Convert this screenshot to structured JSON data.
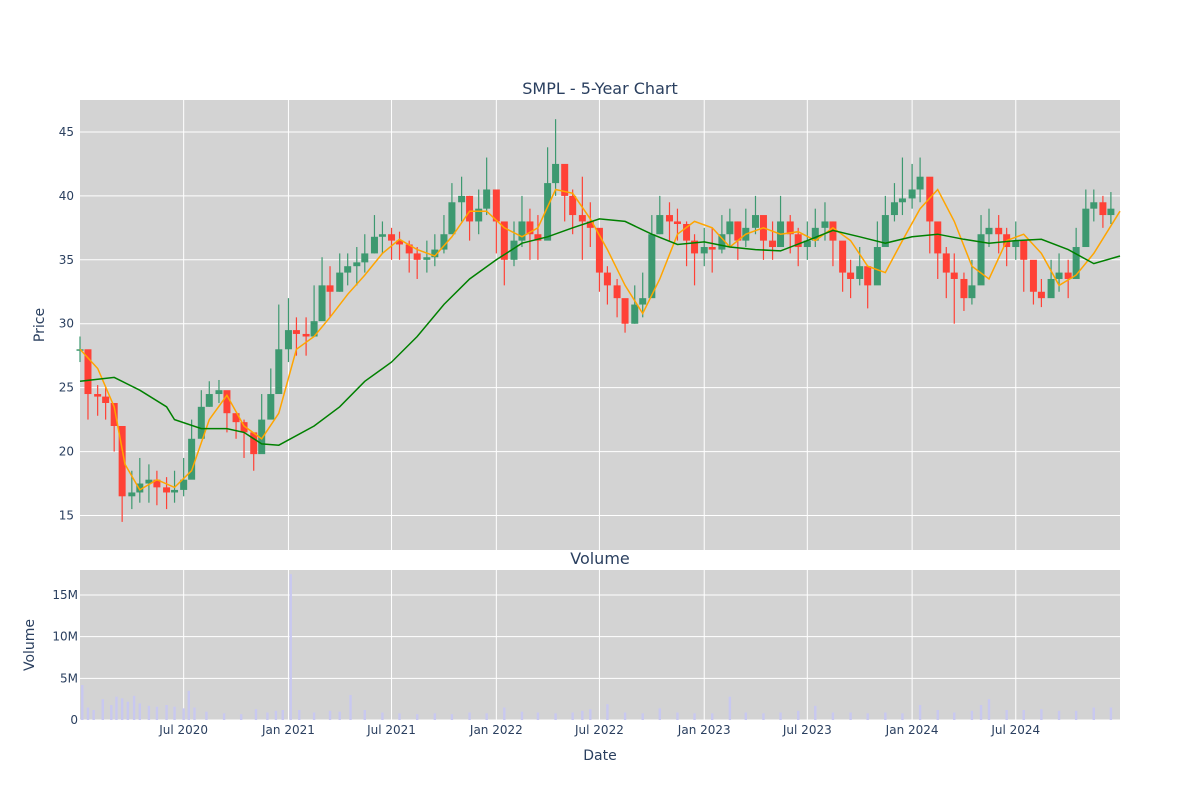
{
  "chart_data": [
    {
      "type": "candlestick",
      "title": "SMPL - 5-Year Chart",
      "ylabel": "Price",
      "xlabel": "",
      "xlim": [
        "2020-01-01",
        "2024-12-31"
      ],
      "ylim": [
        12.3,
        47.5
      ],
      "yticks": [
        15,
        20,
        25,
        30,
        35,
        40,
        45
      ],
      "grid": true,
      "colors": {
        "up": "#3d9970",
        "down": "#ff4136",
        "ma_short": "#ffa500",
        "ma_long": "#008000",
        "background": "#d3d3d3"
      },
      "series": [
        {
          "kind": "candles",
          "x": [
            "2020-01-01",
            "2020-01-15",
            "2020-02-01",
            "2020-02-15",
            "2020-03-01",
            "2020-03-15",
            "2020-04-01",
            "2020-04-15",
            "2020-05-01",
            "2020-05-15",
            "2020-06-01",
            "2020-06-15",
            "2020-07-01",
            "2020-07-15",
            "2020-08-01",
            "2020-08-15",
            "2020-09-01",
            "2020-09-15",
            "2020-10-01",
            "2020-10-15",
            "2020-11-01",
            "2020-11-15",
            "2020-12-01",
            "2020-12-15",
            "2021-01-01",
            "2021-01-15",
            "2021-02-01",
            "2021-02-15",
            "2021-03-01",
            "2021-03-15",
            "2021-04-01",
            "2021-04-15",
            "2021-05-01",
            "2021-05-15",
            "2021-06-01",
            "2021-06-15",
            "2021-07-01",
            "2021-07-15",
            "2021-08-01",
            "2021-08-15",
            "2021-09-01",
            "2021-09-15",
            "2021-10-01",
            "2021-10-15",
            "2021-11-01",
            "2021-11-15",
            "2021-12-01",
            "2021-12-15",
            "2022-01-01",
            "2022-01-15",
            "2022-02-01",
            "2022-02-15",
            "2022-03-01",
            "2022-03-15",
            "2022-04-01",
            "2022-04-15",
            "2022-05-01",
            "2022-05-15",
            "2022-06-01",
            "2022-06-15",
            "2022-07-01",
            "2022-07-15",
            "2022-08-01",
            "2022-08-15",
            "2022-09-01",
            "2022-09-15",
            "2022-10-01",
            "2022-10-15",
            "2022-11-01",
            "2022-11-15",
            "2022-12-01",
            "2022-12-15",
            "2023-01-01",
            "2023-01-15",
            "2023-02-01",
            "2023-02-15",
            "2023-03-01",
            "2023-03-15",
            "2023-04-01",
            "2023-04-15",
            "2023-05-01",
            "2023-05-15",
            "2023-06-01",
            "2023-06-15",
            "2023-07-01",
            "2023-07-15",
            "2023-08-01",
            "2023-08-15",
            "2023-09-01",
            "2023-09-15",
            "2023-10-01",
            "2023-10-15",
            "2023-11-01",
            "2023-11-15",
            "2023-12-01",
            "2023-12-15",
            "2024-01-01",
            "2024-01-15",
            "2024-02-01",
            "2024-02-15",
            "2024-03-01",
            "2024-03-15",
            "2024-04-01",
            "2024-04-15",
            "2024-05-01",
            "2024-05-15",
            "2024-06-01",
            "2024-06-15",
            "2024-07-01",
            "2024-07-15",
            "2024-08-01",
            "2024-08-15",
            "2024-09-01",
            "2024-09-15",
            "2024-10-01",
            "2024-10-15",
            "2024-11-01",
            "2024-11-15",
            "2024-12-01",
            "2024-12-15"
          ],
          "close": [
            28.0,
            24.5,
            24.3,
            23.8,
            22.0,
            16.5,
            16.8,
            17.5,
            17.8,
            17.2,
            16.8,
            17.0,
            17.8,
            21.0,
            23.5,
            24.5,
            24.8,
            23.0,
            22.3,
            21.5,
            19.8,
            22.5,
            24.5,
            28.0,
            29.5,
            29.2,
            29.0,
            30.2,
            33.0,
            32.5,
            34.0,
            34.5,
            34.8,
            35.5,
            36.8,
            37.0,
            36.5,
            36.2,
            35.5,
            35.0,
            35.2,
            35.8,
            37.0,
            39.5,
            40.0,
            38.0,
            39.0,
            40.5,
            38.0,
            35.0,
            36.5,
            38.0,
            37.0,
            36.5,
            41.0,
            42.5,
            40.0,
            38.5,
            38.0,
            37.5,
            34.0,
            33.0,
            32.0,
            30.0,
            31.5,
            32.0,
            37.0,
            38.5,
            38.0,
            37.8,
            36.5,
            35.5,
            36.0,
            35.8,
            37.0,
            38.0,
            36.5,
            37.5,
            38.5,
            36.5,
            36.0,
            38.0,
            37.0,
            36.0,
            36.5,
            37.5,
            38.0,
            36.5,
            34.0,
            33.5,
            34.5,
            33.0,
            36.0,
            38.5,
            39.5,
            39.8,
            40.5,
            41.5,
            38.0,
            35.5,
            34.0,
            33.5,
            32.0,
            33.0,
            37.0,
            37.5,
            37.0,
            36.0,
            36.5,
            35.0,
            32.5,
            32.0,
            33.5,
            34.0,
            33.5,
            36.0,
            39.0,
            39.5,
            38.5,
            39.0
          ],
          "high": [
            29.0,
            25.5,
            25.2,
            25.0,
            23.0,
            18.0,
            18.5,
            19.5,
            19.0,
            18.5,
            18.0,
            18.5,
            19.5,
            22.5,
            24.8,
            25.5,
            25.6,
            24.0,
            23.0,
            22.5,
            21.0,
            24.5,
            26.5,
            31.5,
            32.0,
            30.5,
            30.5,
            33.0,
            35.2,
            34.5,
            35.5,
            35.5,
            36.0,
            37.0,
            38.5,
            38.0,
            37.5,
            37.2,
            36.5,
            36.0,
            36.5,
            37.0,
            38.5,
            41.0,
            41.5,
            40.0,
            40.5,
            43.0,
            40.5,
            37.0,
            38.0,
            40.0,
            39.0,
            38.5,
            43.8,
            46.0,
            42.0,
            40.5,
            41.5,
            39.5,
            36.0,
            34.5,
            33.5,
            31.5,
            33.0,
            34.0,
            38.5,
            40.0,
            39.5,
            39.0,
            38.0,
            37.0,
            37.5,
            37.5,
            38.5,
            39.0,
            38.0,
            39.0,
            40.0,
            38.0,
            38.0,
            40.0,
            38.5,
            37.5,
            38.0,
            39.0,
            39.5,
            38.0,
            35.5,
            35.0,
            36.0,
            34.5,
            38.0,
            40.0,
            41.0,
            43.0,
            42.5,
            43.0,
            40.0,
            37.0,
            36.0,
            35.5,
            34.0,
            35.0,
            38.5,
            39.0,
            38.5,
            37.5,
            38.0,
            36.5,
            34.0,
            33.5,
            35.0,
            35.5,
            35.0,
            37.5,
            40.5,
            40.5,
            40.0,
            40.3
          ],
          "low": [
            27.0,
            22.5,
            22.8,
            22.5,
            20.0,
            14.5,
            15.5,
            16.0,
            16.0,
            15.8,
            15.5,
            16.0,
            16.5,
            19.5,
            22.0,
            23.5,
            23.8,
            21.5,
            21.0,
            19.5,
            18.5,
            21.0,
            23.0,
            26.5,
            27.0,
            27.5,
            27.5,
            29.0,
            31.0,
            30.5,
            32.5,
            33.0,
            33.0,
            34.0,
            35.5,
            35.5,
            35.0,
            35.0,
            34.0,
            33.5,
            34.0,
            34.5,
            35.5,
            38.0,
            38.0,
            36.5,
            37.0,
            38.5,
            35.5,
            33.0,
            34.5,
            36.0,
            35.0,
            35.0,
            39.0,
            40.0,
            38.0,
            37.0,
            35.0,
            36.0,
            32.5,
            31.5,
            30.5,
            29.3,
            30.0,
            30.5,
            35.0,
            37.0,
            36.5,
            36.5,
            34.5,
            33.0,
            34.5,
            34.0,
            35.5,
            36.0,
            35.0,
            36.0,
            37.0,
            35.0,
            35.0,
            36.5,
            35.5,
            34.5,
            35.0,
            36.0,
            36.5,
            34.5,
            32.5,
            32.0,
            33.0,
            31.2,
            34.5,
            37.0,
            38.0,
            38.5,
            39.0,
            39.5,
            35.5,
            33.5,
            32.0,
            30.0,
            31.0,
            31.5,
            35.5,
            36.0,
            35.5,
            34.5,
            35.0,
            32.5,
            31.5,
            31.3,
            32.5,
            32.5,
            32.0,
            34.5,
            37.5,
            38.0,
            37.5,
            37.8
          ]
        },
        {
          "kind": "line",
          "color": "#ffa500",
          "x": [
            "2020-01-01",
            "2020-02-01",
            "2020-03-01",
            "2020-03-20",
            "2020-04-15",
            "2020-05-15",
            "2020-06-15",
            "2020-07-15",
            "2020-08-15",
            "2020-09-15",
            "2020-10-15",
            "2020-11-15",
            "2020-12-15",
            "2021-01-15",
            "2021-02-15",
            "2021-03-15",
            "2021-04-15",
            "2021-05-15",
            "2021-06-15",
            "2021-07-15",
            "2021-08-15",
            "2021-09-15",
            "2021-10-15",
            "2021-11-15",
            "2021-12-15",
            "2022-01-15",
            "2022-02-15",
            "2022-03-15",
            "2022-04-15",
            "2022-05-15",
            "2022-06-15",
            "2022-07-15",
            "2022-08-15",
            "2022-09-15",
            "2022-10-15",
            "2022-11-15",
            "2022-12-15",
            "2023-01-15",
            "2023-02-15",
            "2023-03-15",
            "2023-04-15",
            "2023-05-15",
            "2023-06-15",
            "2023-07-15",
            "2023-08-15",
            "2023-09-15",
            "2023-10-15",
            "2023-11-15",
            "2023-12-15",
            "2024-01-15",
            "2024-02-15",
            "2024-03-15",
            "2024-04-15",
            "2024-05-15",
            "2024-06-15",
            "2024-07-15",
            "2024-08-15",
            "2024-09-15",
            "2024-10-15",
            "2024-11-15",
            "2024-12-31"
          ],
          "values": [
            28.0,
            26.5,
            23.5,
            19.0,
            17.0,
            17.8,
            17.2,
            18.5,
            22.5,
            24.4,
            22.0,
            21.0,
            23.0,
            28.0,
            29.0,
            30.5,
            32.3,
            33.8,
            35.5,
            36.6,
            35.8,
            35.3,
            36.8,
            38.8,
            38.8,
            37.5,
            36.8,
            37.5,
            40.5,
            40.2,
            38.2,
            35.8,
            33.0,
            30.8,
            33.5,
            37.0,
            38.0,
            37.5,
            36.0,
            37.0,
            37.5,
            37.0,
            37.2,
            36.5,
            37.5,
            36.5,
            34.5,
            34.0,
            36.5,
            39.0,
            40.5,
            38.0,
            34.5,
            33.5,
            36.5,
            37.0,
            35.5,
            33.0,
            33.8,
            35.5,
            38.8
          ]
        },
        {
          "kind": "line",
          "color": "#008000",
          "x": [
            "2020-01-01",
            "2020-03-01",
            "2020-04-15",
            "2020-06-01",
            "2020-06-15",
            "2020-08-01",
            "2020-09-15",
            "2020-10-15",
            "2020-11-15",
            "2020-12-15",
            "2021-02-15",
            "2021-04-01",
            "2021-05-15",
            "2021-07-01",
            "2021-08-15",
            "2021-10-01",
            "2021-11-15",
            "2022-01-01",
            "2022-02-15",
            "2022-04-01",
            "2022-05-15",
            "2022-07-01",
            "2022-08-15",
            "2022-10-01",
            "2022-11-15",
            "2023-01-01",
            "2023-02-15",
            "2023-04-01",
            "2023-05-15",
            "2023-07-01",
            "2023-08-15",
            "2023-10-01",
            "2023-11-15",
            "2024-01-01",
            "2024-02-15",
            "2024-04-01",
            "2024-05-15",
            "2024-07-01",
            "2024-08-15",
            "2024-10-01",
            "2024-11-15",
            "2024-12-31"
          ],
          "values": [
            25.5,
            25.8,
            24.8,
            23.5,
            22.5,
            21.8,
            21.8,
            21.5,
            20.6,
            20.5,
            22.0,
            23.5,
            25.5,
            27.0,
            29.0,
            31.5,
            33.5,
            35.0,
            36.3,
            36.8,
            37.5,
            38.2,
            38.0,
            37.0,
            36.2,
            36.4,
            36.0,
            35.8,
            35.7,
            36.5,
            37.3,
            36.8,
            36.3,
            36.8,
            37.0,
            36.6,
            36.3,
            36.5,
            36.6,
            35.8,
            34.7,
            35.3
          ]
        }
      ]
    },
    {
      "type": "bar",
      "title": "Volume",
      "ylabel": "Volume",
      "xlabel": "Date",
      "ylim": [
        0,
        18000000
      ],
      "yticks": [
        0,
        5000000,
        10000000,
        15000000
      ],
      "ytick_labels": [
        "0",
        "5M",
        "10M",
        "15M"
      ],
      "xtick_labels": [
        "Jul 2020",
        "Jan 2021",
        "Jul 2021",
        "Jan 2022",
        "Jul 2022",
        "Jan 2023",
        "Jul 2023",
        "Jan 2024",
        "Jul 2024"
      ],
      "xticks": [
        "2020-07-01",
        "2021-01-01",
        "2021-07-01",
        "2022-01-01",
        "2022-07-01",
        "2023-01-01",
        "2023-07-01",
        "2024-01-01",
        "2024-07-01"
      ],
      "color": "#c8c8f0",
      "x": [
        "2020-01-05",
        "2020-01-15",
        "2020-01-25",
        "2020-02-10",
        "2020-02-25",
        "2020-03-05",
        "2020-03-15",
        "2020-03-25",
        "2020-04-05",
        "2020-04-15",
        "2020-05-01",
        "2020-05-15",
        "2020-06-01",
        "2020-06-15",
        "2020-07-01",
        "2020-07-10",
        "2020-07-20",
        "2020-08-10",
        "2020-09-10",
        "2020-10-10",
        "2020-11-05",
        "2020-11-25",
        "2020-12-10",
        "2020-12-22",
        "2021-01-05",
        "2021-01-20",
        "2021-02-15",
        "2021-03-15",
        "2021-04-01",
        "2021-04-20",
        "2021-05-15",
        "2021-06-15",
        "2021-07-15",
        "2021-08-15",
        "2021-09-15",
        "2021-10-15",
        "2021-11-15",
        "2021-12-15",
        "2022-01-15",
        "2022-02-15",
        "2022-03-15",
        "2022-04-15",
        "2022-05-15",
        "2022-06-01",
        "2022-06-15",
        "2022-07-15",
        "2022-08-15",
        "2022-09-15",
        "2022-10-15",
        "2022-11-15",
        "2022-12-15",
        "2023-01-15",
        "2023-02-15",
        "2023-03-15",
        "2023-04-15",
        "2023-05-15",
        "2023-06-15",
        "2023-07-15",
        "2023-08-15",
        "2023-09-15",
        "2023-10-15",
        "2023-11-15",
        "2023-12-15",
        "2024-01-15",
        "2024-02-15",
        "2024-03-15",
        "2024-04-15",
        "2024-05-01",
        "2024-05-15",
        "2024-06-15",
        "2024-07-15",
        "2024-08-15",
        "2024-09-15",
        "2024-10-15",
        "2024-11-15",
        "2024-12-15"
      ],
      "values": [
        4200000,
        1500000,
        1200000,
        2500000,
        1800000,
        2800000,
        2600000,
        2200000,
        2900000,
        2000000,
        1700000,
        1600000,
        1800000,
        1600000,
        1400000,
        3500000,
        1500000,
        1000000,
        800000,
        700000,
        1300000,
        900000,
        1100000,
        1200000,
        17500000,
        1200000,
        900000,
        1100000,
        1000000,
        3000000,
        1200000,
        900000,
        800000,
        700000,
        800000,
        700000,
        900000,
        800000,
        1500000,
        1000000,
        900000,
        800000,
        900000,
        1100000,
        1300000,
        1900000,
        900000,
        800000,
        1400000,
        900000,
        800000,
        800000,
        2800000,
        900000,
        800000,
        900000,
        1100000,
        1700000,
        900000,
        900000,
        800000,
        900000,
        800000,
        1800000,
        1200000,
        900000,
        1100000,
        1800000,
        2500000,
        1200000,
        1200000,
        1300000,
        1100000,
        1100000,
        1500000,
        1500000
      ]
    }
  ]
}
